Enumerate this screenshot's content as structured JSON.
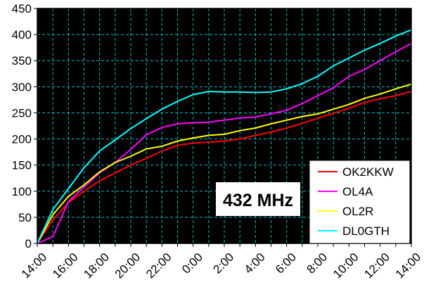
{
  "chart_data": {
    "type": "line",
    "title": "",
    "xlabel": "",
    "ylabel": "",
    "annotation": "432 MHz",
    "ylim": [
      0,
      450
    ],
    "yticks": [
      0,
      50,
      100,
      150,
      200,
      250,
      300,
      350,
      400,
      450
    ],
    "categories": [
      "14:00",
      "15:00",
      "16:00",
      "17:00",
      "18:00",
      "19:00",
      "20:00",
      "21:00",
      "22:00",
      "23:00",
      "0:00",
      "1:00",
      "2:00",
      "3:00",
      "4:00",
      "5:00",
      "6:00",
      "7:00",
      "8:00",
      "9:00",
      "10:00",
      "11:00",
      "12:00",
      "13:00",
      "14:00"
    ],
    "xtick_labels": [
      "14:00",
      "16:00",
      "18:00",
      "20:00",
      "22:00",
      "0:00",
      "2:00",
      "4:00",
      "6:00",
      "8:00",
      "10:00",
      "12:00",
      "14:00"
    ],
    "grid": true,
    "background": "#000000",
    "grid_color": "#00c0c0",
    "legend_position": "bottom-right",
    "series": [
      {
        "name": "OK2KKW",
        "color": "#ff0000",
        "values": [
          0,
          45,
          78,
          100,
          120,
          135,
          150,
          163,
          177,
          188,
          192,
          194,
          196,
          200,
          207,
          213,
          221,
          230,
          240,
          249,
          259,
          270,
          277,
          283,
          291
        ]
      },
      {
        "name": "OL4A",
        "color": "#ff00ff",
        "values": [
          0,
          13,
          80,
          108,
          135,
          155,
          180,
          208,
          222,
          229,
          231,
          232,
          236,
          240,
          242,
          248,
          255,
          268,
          283,
          298,
          320,
          333,
          350,
          367,
          383
        ]
      },
      {
        "name": "OL2R",
        "color": "#ffff00",
        "values": [
          0,
          55,
          90,
          112,
          137,
          155,
          167,
          181,
          186,
          196,
          202,
          207,
          209,
          216,
          221,
          229,
          236,
          243,
          248,
          257,
          266,
          278,
          286,
          296,
          305
        ]
      },
      {
        "name": "DL0GTH",
        "color": "#00ffff",
        "values": [
          0,
          65,
          105,
          145,
          177,
          198,
          220,
          239,
          257,
          272,
          285,
          291,
          290,
          290,
          289,
          290,
          296,
          306,
          320,
          340,
          355,
          370,
          383,
          397,
          409
        ]
      }
    ]
  }
}
